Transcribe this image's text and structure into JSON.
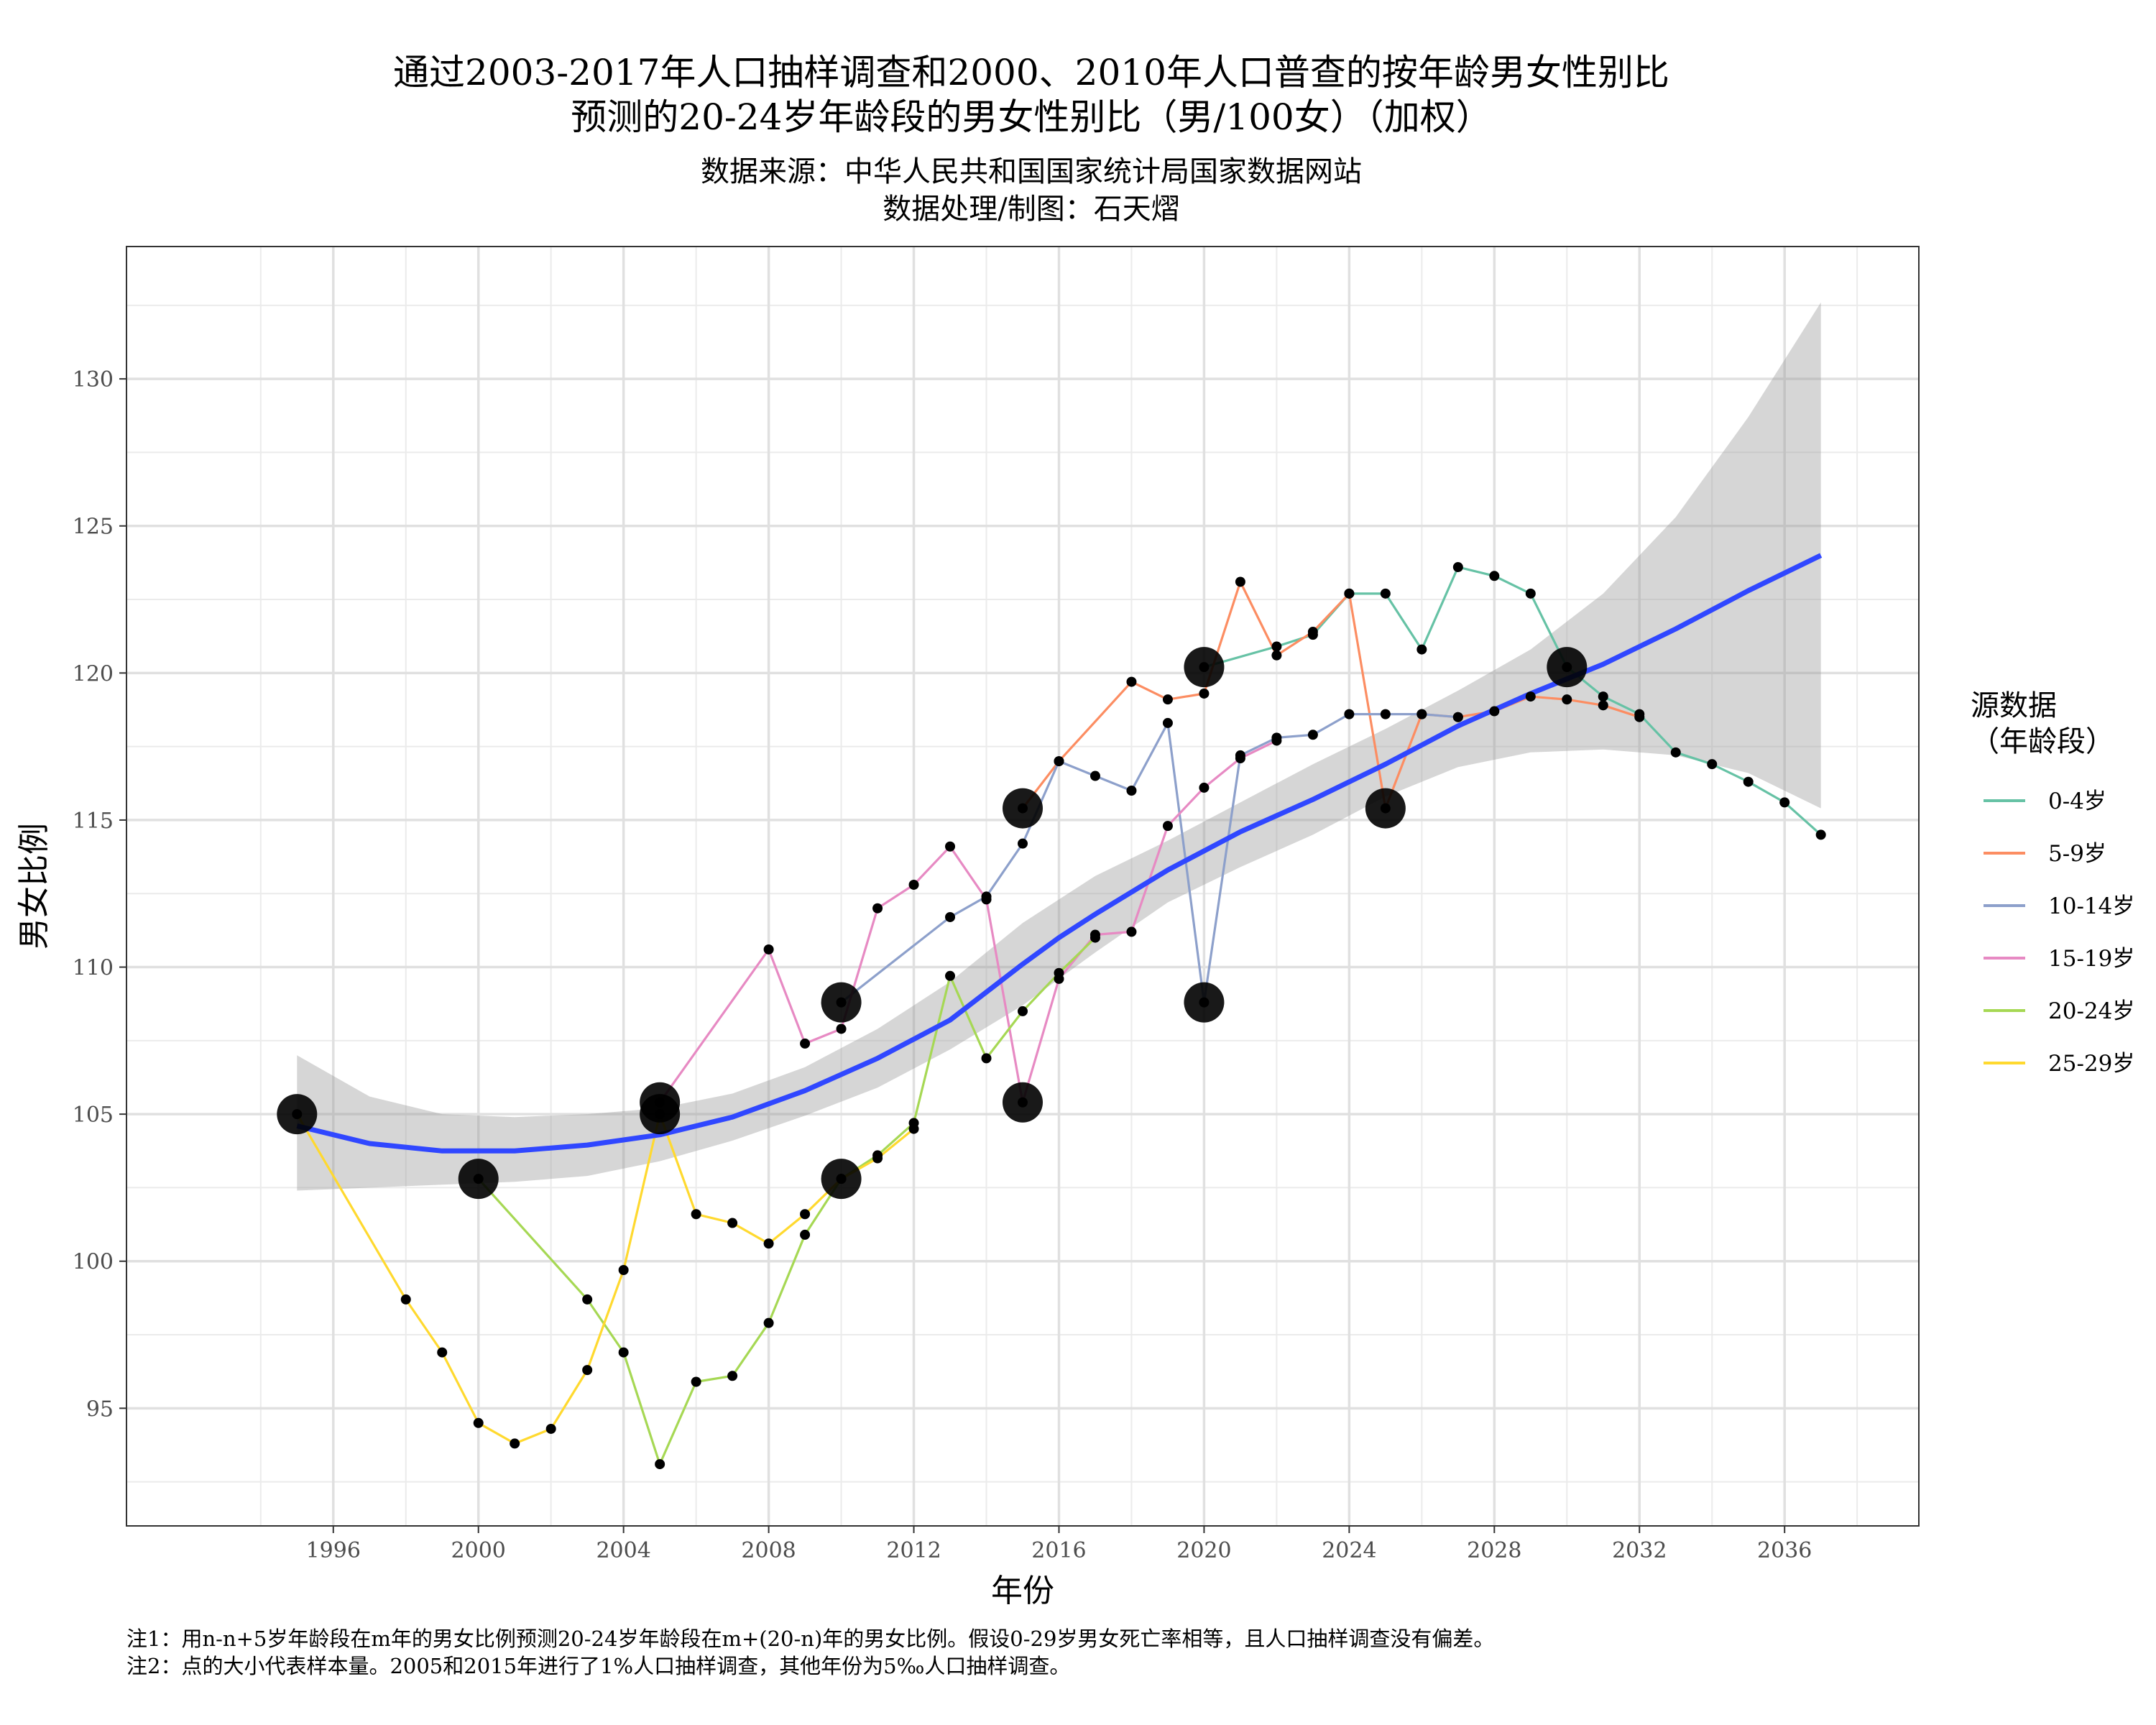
{
  "chart_data": {
    "type": "line",
    "title": [
      "通过2003-2017年人口抽样调查和2000、2010年人口普查的按年龄男女性别比",
      "预测的20-24岁年龄段的男女性别比（男/100女）（加权）"
    ],
    "subtitle": [
      "数据来源：中华人民共和国国家统计局国家数据网站",
      "数据处理/制图：石天熠"
    ],
    "xlabel": "年份",
    "ylabel": "男女比例",
    "xlim": [
      1990.3,
      2039.7
    ],
    "ylim": [
      91.0,
      134.5
    ],
    "x_ticks": [
      1996,
      2000,
      2004,
      2008,
      2012,
      2016,
      2020,
      2024,
      2028,
      2032,
      2036
    ],
    "y_ticks": [
      95,
      100,
      105,
      110,
      115,
      120,
      125,
      130
    ],
    "grid": true,
    "legend": {
      "title": [
        "源数据",
        "（年龄段）"
      ],
      "placement": "right",
      "entries": [
        "0-4岁",
        "5-9岁",
        "10-14岁",
        "15-19岁",
        "20-24岁",
        "25-29岁"
      ]
    },
    "series": [
      {
        "name": "0-4岁",
        "color": "#66c2a5",
        "points": [
          [
            2020,
            120.2
          ],
          [
            2022,
            120.9
          ],
          [
            2023,
            121.3
          ],
          [
            2024,
            122.7
          ],
          [
            2025,
            122.7
          ],
          [
            2026,
            120.8
          ],
          [
            2027,
            123.6
          ],
          [
            2028,
            123.3
          ],
          [
            2029,
            122.7
          ],
          [
            2030,
            120.2
          ],
          [
            2031,
            119.2
          ],
          [
            2032,
            118.6
          ],
          [
            2033,
            117.3
          ],
          [
            2034,
            116.9
          ],
          [
            2035,
            116.3
          ],
          [
            2036,
            115.6
          ],
          [
            2037,
            114.5
          ]
        ]
      },
      {
        "name": "5-9岁",
        "color": "#fc8d62",
        "points": [
          [
            2015,
            115.4
          ],
          [
            2016,
            117.0
          ],
          [
            2018,
            119.7
          ],
          [
            2019,
            119.1
          ],
          [
            2020,
            119.3
          ],
          [
            2021,
            123.1
          ],
          [
            2022,
            120.6
          ],
          [
            2023,
            121.4
          ],
          [
            2024,
            122.7
          ],
          [
            2025,
            115.4
          ],
          [
            2026,
            118.6
          ],
          [
            2027,
            118.5
          ],
          [
            2028,
            118.7
          ],
          [
            2029,
            119.2
          ],
          [
            2030,
            119.1
          ],
          [
            2031,
            118.9
          ],
          [
            2032,
            118.5
          ]
        ]
      },
      {
        "name": "10-14岁",
        "color": "#8da0cb",
        "points": [
          [
            2010,
            108.8
          ],
          [
            2013,
            111.7
          ],
          [
            2014,
            112.4
          ],
          [
            2015,
            114.2
          ],
          [
            2016,
            117.0
          ],
          [
            2017,
            116.5
          ],
          [
            2018,
            116.0
          ],
          [
            2019,
            118.3
          ],
          [
            2020,
            108.8
          ],
          [
            2021,
            117.2
          ],
          [
            2022,
            117.8
          ],
          [
            2023,
            117.9
          ],
          [
            2024,
            118.6
          ],
          [
            2025,
            118.6
          ],
          [
            2026,
            118.6
          ],
          [
            2027,
            118.5
          ]
        ]
      },
      {
        "name": "15-19岁",
        "color": "#e78ac3",
        "points": [
          [
            2005,
            105.4
          ],
          [
            2008,
            110.6
          ],
          [
            2009,
            107.4
          ],
          [
            2010,
            107.9
          ],
          [
            2011,
            112.0
          ],
          [
            2012,
            112.8
          ],
          [
            2013,
            114.1
          ],
          [
            2014,
            112.3
          ],
          [
            2015,
            105.4
          ],
          [
            2016,
            109.6
          ],
          [
            2017,
            111.1
          ],
          [
            2018,
            111.2
          ],
          [
            2019,
            114.8
          ],
          [
            2020,
            116.1
          ],
          [
            2021,
            117.1
          ],
          [
            2022,
            117.7
          ]
        ]
      },
      {
        "name": "20-24岁",
        "color": "#a6d854",
        "points": [
          [
            2000,
            102.8
          ],
          [
            2003,
            98.7
          ],
          [
            2004,
            96.9
          ],
          [
            2005,
            93.1
          ],
          [
            2006,
            95.9
          ],
          [
            2007,
            96.1
          ],
          [
            2008,
            97.9
          ],
          [
            2009,
            100.9
          ],
          [
            2010,
            102.8
          ],
          [
            2011,
            103.6
          ],
          [
            2012,
            104.7
          ],
          [
            2013,
            109.7
          ],
          [
            2014,
            106.9
          ],
          [
            2015,
            108.5
          ],
          [
            2016,
            109.8
          ],
          [
            2017,
            111.0
          ]
        ]
      },
      {
        "name": "25-29岁",
        "color": "#ffd92f",
        "points": [
          [
            1995,
            105.0
          ],
          [
            1998,
            98.7
          ],
          [
            1999,
            96.9
          ],
          [
            2000,
            94.5
          ],
          [
            2001,
            93.8
          ],
          [
            2002,
            94.3
          ],
          [
            2003,
            96.3
          ],
          [
            2004,
            99.7
          ],
          [
            2005,
            105.0
          ],
          [
            2006,
            101.6
          ],
          [
            2007,
            101.3
          ],
          [
            2008,
            100.6
          ],
          [
            2009,
            101.6
          ],
          [
            2010,
            102.8
          ],
          [
            2011,
            103.5
          ],
          [
            2012,
            104.5
          ]
        ]
      }
    ],
    "large_points": [
      [
        1995,
        105.0
      ],
      [
        2000,
        102.8
      ],
      [
        2005,
        105.4
      ],
      [
        2005,
        105.0
      ],
      [
        2010,
        108.8
      ],
      [
        2010,
        102.8
      ],
      [
        2015,
        115.4
      ],
      [
        2015,
        105.4
      ],
      [
        2020,
        120.2
      ],
      [
        2020,
        108.8
      ],
      [
        2025,
        115.4
      ],
      [
        2030,
        120.2
      ]
    ],
    "smooth": {
      "color": "#3047ff",
      "x": [
        1995,
        1997,
        1999,
        2001,
        2003,
        2005,
        2007,
        2009,
        2011,
        2013,
        2015,
        2016,
        2017,
        2019,
        2021,
        2023,
        2025,
        2027,
        2029,
        2031,
        2033,
        2035,
        2037
      ],
      "y": [
        104.6,
        104.0,
        103.75,
        103.75,
        103.95,
        104.3,
        104.9,
        105.8,
        106.9,
        108.2,
        110.1,
        111.0,
        111.8,
        113.3,
        114.6,
        115.7,
        116.9,
        118.2,
        119.3,
        120.3,
        121.5,
        122.8,
        124.0
      ],
      "lower": [
        102.4,
        102.5,
        102.6,
        102.7,
        102.9,
        103.4,
        104.1,
        104.95,
        105.9,
        107.2,
        108.7,
        109.6,
        110.5,
        112.2,
        113.4,
        114.5,
        115.8,
        116.8,
        117.3,
        117.4,
        117.2,
        116.6,
        115.4
      ],
      "upper": [
        107.0,
        105.6,
        105.0,
        104.9,
        105.0,
        105.2,
        105.7,
        106.6,
        107.9,
        109.5,
        111.5,
        112.3,
        113.1,
        114.3,
        115.6,
        116.9,
        118.1,
        119.4,
        120.8,
        122.7,
        125.3,
        128.7,
        132.6
      ]
    }
  },
  "caption": [
    "注1：用n-n+5岁年龄段在m年的男女比例预测20-24岁年龄段在m+(20-n)年的男女比例。假设0-29岁男女死亡率相等，且人口抽样调查没有偏差。",
    "注2：点的大小代表样本量。2005和2015年进行了1%人口抽样调查，其他年份为5‰人口抽样调查。"
  ]
}
